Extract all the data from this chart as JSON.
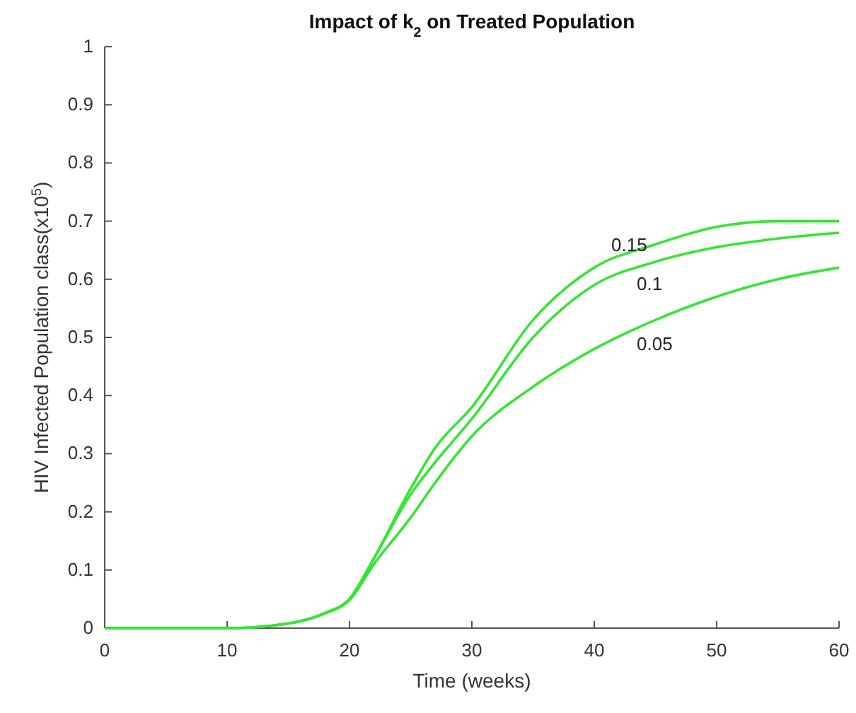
{
  "chart_data": {
    "type": "line",
    "title": "Impact of k$_{2}$ on Treated Population",
    "xlabel": "Time (weeks)",
    "ylabel": "HIV Infected Population class(x10$^{5}$)",
    "x": [
      0,
      10,
      15,
      18,
      20,
      22,
      25,
      27,
      30,
      35,
      40,
      45,
      50,
      55,
      60
    ],
    "series": [
      {
        "name": "0.15",
        "color": "#33e633",
        "values": [
          0,
          0,
          0.008,
          0.026,
          0.05,
          0.12,
          0.24,
          0.31,
          0.38,
          0.53,
          0.62,
          0.66,
          0.69,
          0.7,
          0.7
        ]
      },
      {
        "name": "0.1",
        "color": "#33e633",
        "values": [
          0,
          0,
          0.008,
          0.026,
          0.05,
          0.12,
          0.23,
          0.285,
          0.36,
          0.5,
          0.59,
          0.63,
          0.655,
          0.67,
          0.68
        ]
      },
      {
        "name": "0.05",
        "color": "#33e633",
        "values": [
          0,
          0,
          0.008,
          0.025,
          0.048,
          0.11,
          0.19,
          0.25,
          0.33,
          0.415,
          0.48,
          0.53,
          0.57,
          0.6,
          0.62
        ]
      }
    ],
    "xlim": [
      0,
      60
    ],
    "xticks": [
      0,
      10,
      20,
      30,
      40,
      50,
      60
    ],
    "ylim": [
      0,
      1
    ],
    "yticks": [
      0,
      0.1,
      0.2,
      0.3,
      0.4,
      0.5,
      0.6,
      0.7,
      0.8,
      0.9,
      1
    ],
    "grid": false,
    "line_style": "solid",
    "marker": "none"
  }
}
